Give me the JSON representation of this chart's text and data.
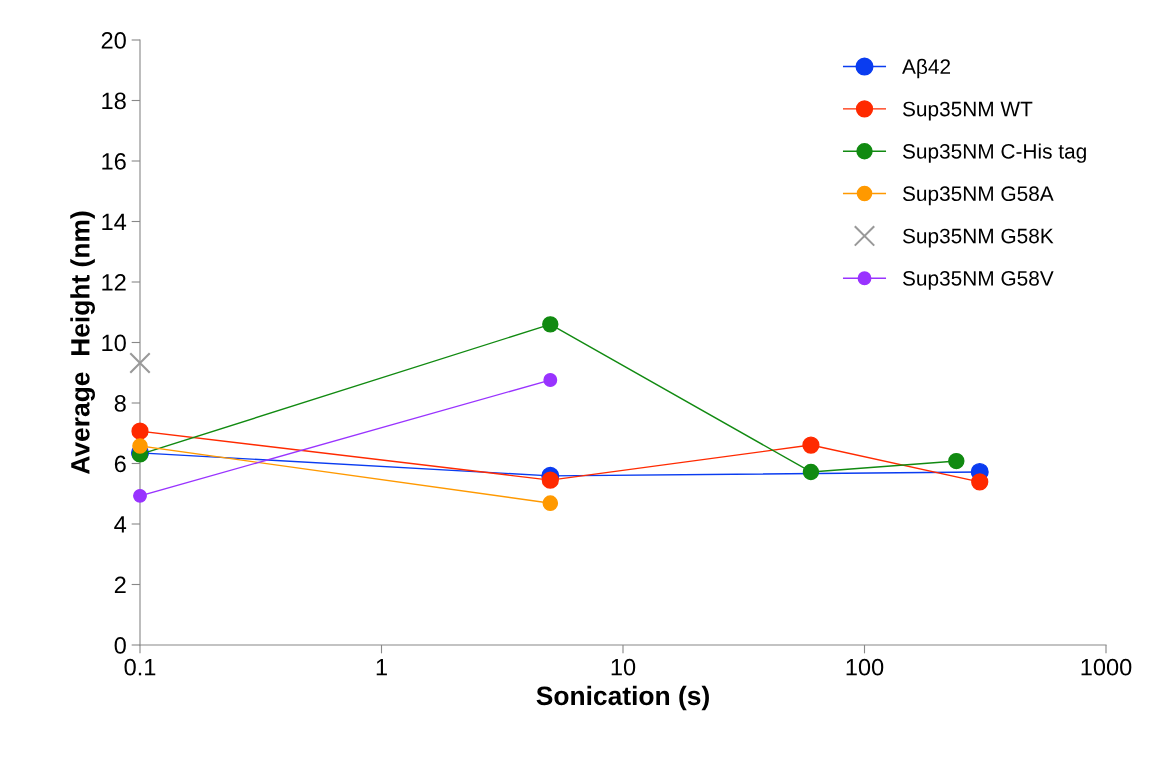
{
  "chart_data": {
    "type": "line",
    "xlabel": "Sonication (s)",
    "ylabel": "Average  Height (nm)",
    "log": "x",
    "xlim": [
      0.1,
      1000
    ],
    "xticks": [
      0.1,
      1,
      10,
      100,
      1000
    ],
    "ylim": [
      0,
      20
    ],
    "yticks": [
      0,
      2,
      4,
      6,
      8,
      10,
      12,
      14,
      16,
      18,
      20
    ],
    "grid": false,
    "legend": "top right",
    "marker": "circle",
    "series": [
      {
        "name": "Aβ42",
        "color": "#0a3cf0",
        "x": [
          0.1,
          5,
          300
        ],
        "values": [
          6.35,
          5.59,
          5.72
        ]
      },
      {
        "name": "Sup35NM WT",
        "color": "#ff2a00",
        "x": [
          0.1,
          5,
          60,
          300
        ],
        "values": [
          7.07,
          5.45,
          6.61,
          5.39
        ]
      },
      {
        "name": "Sup35NM C-His tag",
        "color": "#118a11",
        "x": [
          0.1,
          5,
          60,
          240
        ],
        "values": [
          6.3,
          10.6,
          5.72,
          6.08
        ]
      },
      {
        "name": "Sup35NM G58A",
        "color": "#ff9900",
        "x": [
          0.1,
          5
        ],
        "values": [
          6.58,
          4.69
        ]
      },
      {
        "name": "Sup35NM G58K",
        "color": "#999999",
        "type": "scatter",
        "marker": "cross",
        "x": [
          0.1
        ],
        "values": [
          9.32
        ]
      },
      {
        "name": "Sup35NM G58V",
        "color": "#9933ff",
        "x": [
          0.1,
          5
        ],
        "values": [
          4.93,
          8.76
        ]
      }
    ]
  }
}
